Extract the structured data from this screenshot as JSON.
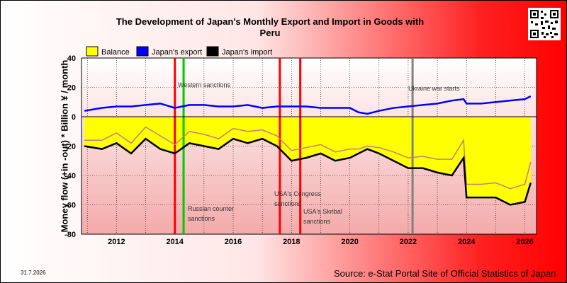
{
  "title_line1": "The Development of Japan's Monthly Export and Import in Goods with",
  "title_line2": "Peru",
  "date_stamp": "31.7.2026",
  "source": "Source: e-Stat Portal Site of Official Statistics of Japan",
  "colors": {
    "balance": "#ffff00",
    "export": "#0000ff",
    "import": "#000000",
    "event": "#ff0000",
    "ukraine": "#808080",
    "russian": "#00cc00"
  },
  "chart_data": {
    "type": "line",
    "title": "The Development of Japan's Monthly Export and Import in Goods with Peru",
    "ylabel": "Money flow (+in -out) * Billion ¥ / month",
    "ylim": [
      -80,
      40
    ],
    "yticks": [
      40,
      20,
      0,
      -20,
      -40,
      -60,
      -80
    ],
    "xlim": [
      2010.8,
      2026.4
    ],
    "xticks": [
      2012,
      2014,
      2016,
      2018,
      2020,
      2022,
      2024,
      2026
    ],
    "grid": true,
    "legend_position": "top-left",
    "legend": [
      "Balance",
      "Japan's export",
      "Japan's import"
    ],
    "events": [
      {
        "date": 2014.0,
        "label": "",
        "color": "#ff0000"
      },
      {
        "date": 2014.3,
        "label": "Western sanctions",
        "color": "#00cc00"
      },
      {
        "date": 2014.3,
        "label": "Russian counter sanctions",
        "color": "#00cc00"
      },
      {
        "date": 2017.6,
        "label": "USA's Congress sanctions",
        "color": "#ff0000"
      },
      {
        "date": 2018.3,
        "label": "USA's Skribal sanctions",
        "color": "#ff0000"
      },
      {
        "date": 2022.15,
        "label": "Ukraine war starts",
        "color": "#808080"
      }
    ],
    "series": [
      {
        "name": "Japan's export",
        "x": [
          2010.9,
          2011.5,
          2012.0,
          2012.5,
          2013.0,
          2013.5,
          2014.0,
          2014.5,
          2015.0,
          2015.5,
          2016.0,
          2016.5,
          2017.0,
          2017.5,
          2018.0,
          2018.5,
          2019.0,
          2019.5,
          2020.0,
          2020.3,
          2020.6,
          2021.0,
          2021.5,
          2022.0,
          2022.5,
          2023.0,
          2023.5,
          2023.9,
          2024.0,
          2024.5,
          2025.0,
          2025.5,
          2026.0,
          2026.2
        ],
        "y": [
          4,
          6,
          7,
          7,
          8,
          9,
          6,
          8,
          8,
          7,
          7,
          8,
          6,
          7,
          7,
          7,
          6,
          6,
          6,
          3,
          2,
          4,
          6,
          7,
          8,
          9,
          11,
          12,
          9,
          9,
          10,
          11,
          12,
          14
        ]
      },
      {
        "name": "Japan's import",
        "x": [
          2010.9,
          2011.5,
          2012.0,
          2012.5,
          2013.0,
          2013.5,
          2014.0,
          2014.5,
          2015.0,
          2015.5,
          2016.0,
          2016.5,
          2017.0,
          2017.5,
          2018.0,
          2018.5,
          2019.0,
          2019.5,
          2020.0,
          2020.3,
          2020.6,
          2021.0,
          2021.5,
          2022.0,
          2022.5,
          2023.0,
          2023.5,
          2023.9,
          2024.0,
          2024.5,
          2025.0,
          2025.5,
          2026.0,
          2026.2
        ],
        "y": [
          -20,
          -22,
          -18,
          -25,
          -15,
          -22,
          -25,
          -18,
          -20,
          -22,
          -15,
          -18,
          -15,
          -20,
          -30,
          -28,
          -25,
          -30,
          -28,
          -25,
          -22,
          -25,
          -30,
          -35,
          -35,
          -38,
          -40,
          -28,
          -55,
          -55,
          -55,
          -60,
          -58,
          -45
        ]
      },
      {
        "name": "Balance",
        "x": [
          2010.9,
          2011.5,
          2012.0,
          2012.5,
          2013.0,
          2013.5,
          2014.0,
          2014.5,
          2015.0,
          2015.5,
          2016.0,
          2016.5,
          2017.0,
          2017.5,
          2018.0,
          2018.5,
          2019.0,
          2019.5,
          2020.0,
          2020.3,
          2020.6,
          2021.0,
          2021.5,
          2022.0,
          2022.5,
          2023.0,
          2023.5,
          2023.9,
          2024.0,
          2024.5,
          2025.0,
          2025.5,
          2026.0,
          2026.2
        ],
        "y": [
          -16,
          -16,
          -11,
          -18,
          -7,
          -13,
          -19,
          -10,
          -12,
          -15,
          -8,
          -10,
          -9,
          -13,
          -23,
          -21,
          -19,
          -24,
          -22,
          -22,
          -20,
          -21,
          -24,
          -28,
          -27,
          -29,
          -29,
          -16,
          -46,
          -46,
          -45,
          -49,
          -46,
          -31
        ]
      }
    ]
  }
}
